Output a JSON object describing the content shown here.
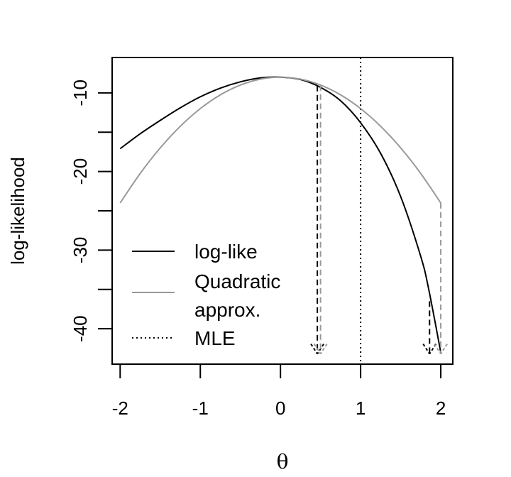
{
  "chart_data": {
    "type": "line",
    "xlabel": "θ",
    "ylabel": "log-likelihood",
    "xlim": [
      -2.1,
      2.15
    ],
    "ylim": [
      -44.5,
      -5.5
    ],
    "xticks": [
      -2,
      -1,
      0,
      1,
      2
    ],
    "yticks": [
      -10,
      -20,
      -30,
      -40
    ],
    "grid": false,
    "legend": {
      "placement": "bottom-left",
      "entries": [
        {
          "label": "log-like",
          "color": "#000000",
          "style": "solid"
        },
        {
          "label": "Quadratic approx.",
          "label_lines": [
            "Quadratic",
            "approx."
          ],
          "color": "#999999",
          "style": "solid"
        },
        {
          "label": "MLE",
          "color": "#000000",
          "style": "dotted"
        }
      ]
    },
    "series": [
      {
        "name": "log-like",
        "color": "#000000",
        "x": [
          -2,
          -1.75,
          -1.5,
          -1.25,
          -1,
          -0.75,
          -0.5,
          -0.25,
          0,
          0.25,
          0.5,
          0.75,
          1,
          1.25,
          1.5,
          1.75,
          1.85,
          2
        ],
        "y": [
          -17.1,
          -15.2,
          -13.5,
          -11.9,
          -10.5,
          -9.4,
          -8.6,
          -8.1,
          -8.0,
          -8.3,
          -9.3,
          -11.0,
          -13.8,
          -17.7,
          -23.2,
          -30.8,
          -35.0,
          -43.0
        ]
      },
      {
        "name": "Quadratic approx.",
        "color": "#999999",
        "x": [
          -2,
          -1.75,
          -1.5,
          -1.25,
          -1,
          -0.75,
          -0.5,
          -0.25,
          0,
          0.25,
          0.5,
          0.75,
          1,
          1.25,
          1.5,
          1.75,
          2
        ],
        "y": [
          -24.0,
          -20.25,
          -17.0,
          -14.25,
          -12.0,
          -10.25,
          -9.0,
          -8.25,
          -8.0,
          -8.25,
          -9.0,
          -10.25,
          -12.0,
          -14.25,
          -17.0,
          -20.25,
          -24.0
        ]
      }
    ],
    "vertical_lines": [
      {
        "x": 1,
        "style": "dotted",
        "color": "#000000",
        "y_from": -44.5,
        "y_to": -5.5
      }
    ],
    "arrows": [
      {
        "x": 0.46,
        "y_from": -9.1,
        "y_to": -43.2,
        "color": "#000000",
        "style": "dashed"
      },
      {
        "x": 0.5,
        "y_from": -9.0,
        "y_to": -43.2,
        "color": "#999999",
        "style": "dashed"
      },
      {
        "x": 1.86,
        "y_from": -36.5,
        "y_to": -43.2,
        "color": "#000000",
        "style": "dashed"
      },
      {
        "x": 2.0,
        "y_from": -24.0,
        "y_to": -43.2,
        "color": "#999999",
        "style": "dashed"
      }
    ]
  }
}
